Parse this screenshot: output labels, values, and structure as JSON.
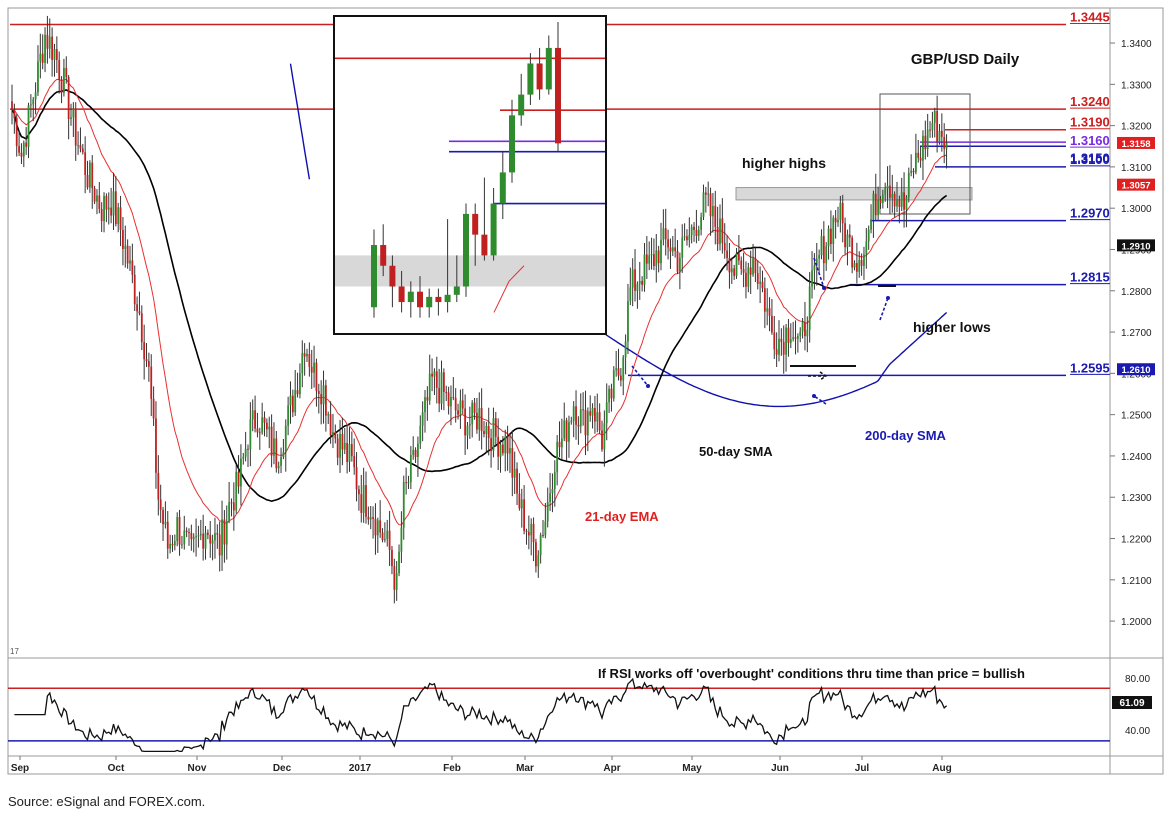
{
  "chart_data": {
    "type": "candlestick",
    "title": "GBP/USD Daily",
    "price_axis": {
      "ylim": [
        1.193,
        1.348
      ],
      "ticks": [
        "1.3400",
        "1.3300",
        "1.3200",
        "1.3100",
        "1.3000",
        "1.2900",
        "1.2800",
        "1.2700",
        "1.2600",
        "1.2500",
        "1.2400",
        "1.2300",
        "1.2200",
        "1.2100",
        "1.2000"
      ]
    },
    "x_axis": {
      "labels": [
        "Sep",
        "Oct",
        "Nov",
        "Dec",
        "2017",
        "Feb",
        "Mar",
        "Apr",
        "May",
        "Jun",
        "Jul",
        "Aug"
      ],
      "corner_label": "17"
    },
    "price_path": [
      [
        0,
        1.324
      ],
      [
        4,
        1.313
      ],
      [
        10,
        1.33
      ],
      [
        14,
        1.342
      ],
      [
        18,
        1.338
      ],
      [
        22,
        1.33
      ],
      [
        26,
        1.32
      ],
      [
        32,
        1.308
      ],
      [
        38,
        1.3
      ],
      [
        42,
        1.302
      ],
      [
        46,
        1.295
      ],
      [
        50,
        1.285
      ],
      [
        54,
        1.275
      ],
      [
        58,
        1.26
      ],
      [
        62,
        1.23
      ],
      [
        66,
        1.218
      ],
      [
        70,
        1.223
      ],
      [
        76,
        1.216
      ],
      [
        82,
        1.223
      ],
      [
        88,
        1.218
      ],
      [
        92,
        1.228
      ],
      [
        96,
        1.233
      ],
      [
        100,
        1.245
      ],
      [
        104,
        1.25
      ],
      [
        108,
        1.245
      ],
      [
        112,
        1.24
      ],
      [
        116,
        1.247
      ],
      [
        120,
        1.256
      ],
      [
        124,
        1.268
      ],
      [
        128,
        1.26
      ],
      [
        132,
        1.256
      ],
      [
        136,
        1.246
      ],
      [
        140,
        1.242
      ],
      [
        144,
        1.238
      ],
      [
        148,
        1.23
      ],
      [
        152,
        1.228
      ],
      [
        156,
        1.222
      ],
      [
        160,
        1.217
      ],
      [
        163,
        1.208
      ],
      [
        166,
        1.23
      ],
      [
        170,
        1.238
      ],
      [
        174,
        1.248
      ],
      [
        178,
        1.258
      ],
      [
        182,
        1.256
      ],
      [
        186,
        1.252
      ],
      [
        190,
        1.25
      ],
      [
        194,
        1.248
      ],
      [
        198,
        1.25
      ],
      [
        202,
        1.246
      ],
      [
        206,
        1.244
      ],
      [
        210,
        1.243
      ],
      [
        214,
        1.23
      ],
      [
        218,
        1.223
      ],
      [
        222,
        1.217
      ],
      [
        226,
        1.225
      ],
      [
        230,
        1.24
      ],
      [
        234,
        1.245
      ],
      [
        238,
        1.253
      ],
      [
        242,
        1.248
      ],
      [
        246,
        1.253
      ],
      [
        250,
        1.244
      ],
      [
        254,
        1.255
      ],
      [
        258,
        1.262
      ],
      [
        262,
        1.28
      ],
      [
        266,
        1.284
      ],
      [
        270,
        1.286
      ],
      [
        274,
        1.29
      ],
      [
        278,
        1.292
      ],
      [
        282,
        1.288
      ],
      [
        286,
        1.292
      ],
      [
        290,
        1.297
      ],
      [
        294,
        1.301
      ],
      [
        298,
        1.296
      ],
      [
        302,
        1.292
      ],
      [
        306,
        1.285
      ],
      [
        310,
        1.284
      ],
      [
        314,
        1.288
      ],
      [
        318,
        1.28
      ],
      [
        322,
        1.27
      ],
      [
        326,
        1.268
      ],
      [
        330,
        1.272
      ],
      [
        334,
        1.266
      ],
      [
        338,
        1.278
      ],
      [
        342,
        1.288
      ],
      [
        346,
        1.294
      ],
      [
        350,
        1.299
      ],
      [
        354,
        1.292
      ],
      [
        358,
        1.288
      ],
      [
        362,
        1.292
      ],
      [
        366,
        1.302
      ],
      [
        370,
        1.308
      ],
      [
        374,
        1.304
      ],
      [
        378,
        1.3
      ],
      [
        382,
        1.31
      ],
      [
        386,
        1.315
      ],
      [
        390,
        1.321
      ],
      [
        394,
        1.318
      ],
      [
        396,
        1.3158
      ]
    ],
    "indicators": [
      {
        "name": "21-day EMA",
        "color": "#e83030"
      },
      {
        "name": "50-day SMA",
        "color": "#000000"
      },
      {
        "name": "200-day SMA",
        "color": "#1010b0"
      }
    ],
    "levels": [
      {
        "label": "1.3445",
        "value": 1.3445,
        "color": "#cc1f1f",
        "underline": true
      },
      {
        "label": "1.3240",
        "value": 1.324,
        "color": "#cc1f1f",
        "underline": true
      },
      {
        "label": "1.3190",
        "value": 1.319,
        "color": "#cc1f1f",
        "underline": true
      },
      {
        "label": "1.3160",
        "value": 1.316,
        "color": "#7a2be0",
        "underline": true
      },
      {
        "label": "1.3150",
        "value": 1.315,
        "color": "#1a1ab0",
        "underline": false
      },
      {
        "label": "1.3100",
        "value": 1.31,
        "color": "#1a1ab0",
        "underline": true
      },
      {
        "label": "1.2970",
        "value": 1.297,
        "color": "#1a1ab0",
        "underline": true
      },
      {
        "label": "1.2815",
        "value": 1.2815,
        "color": "#1a1ab0",
        "underline": true
      },
      {
        "label": "1.2595",
        "value": 1.2595,
        "color": "#1a1ab0",
        "underline": true
      }
    ],
    "price_badges": [
      {
        "label": "1.3158",
        "value": 1.3158,
        "bg": "#e02020"
      },
      {
        "label": "1.3057",
        "value": 1.3057,
        "bg": "#e02020"
      },
      {
        "label": "1.2910",
        "value": 1.291,
        "bg": "#111111"
      },
      {
        "label": "1.2610",
        "value": 1.261,
        "bg": "#1a1ab0"
      }
    ],
    "annotations": [
      {
        "text": "higher highs",
        "color": "#111111"
      },
      {
        "text": "higher lows",
        "color": "#111111"
      },
      {
        "text": "50-day SMA",
        "color": "#111111"
      },
      {
        "text": "200-day SMA",
        "color": "#1a1ab0"
      },
      {
        "text": "21-day EMA",
        "color": "#e02020"
      }
    ],
    "rsi_panel": {
      "note": "If RSI works off 'overbought' conditions thru time than price = bullish",
      "ticks": [
        "80.00",
        "40.00"
      ],
      "current_label": "61.09",
      "overbought": 70,
      "oversold": 30,
      "ylim": [
        20,
        90
      ]
    }
  },
  "source": "Source: eSignal and FOREX.com."
}
